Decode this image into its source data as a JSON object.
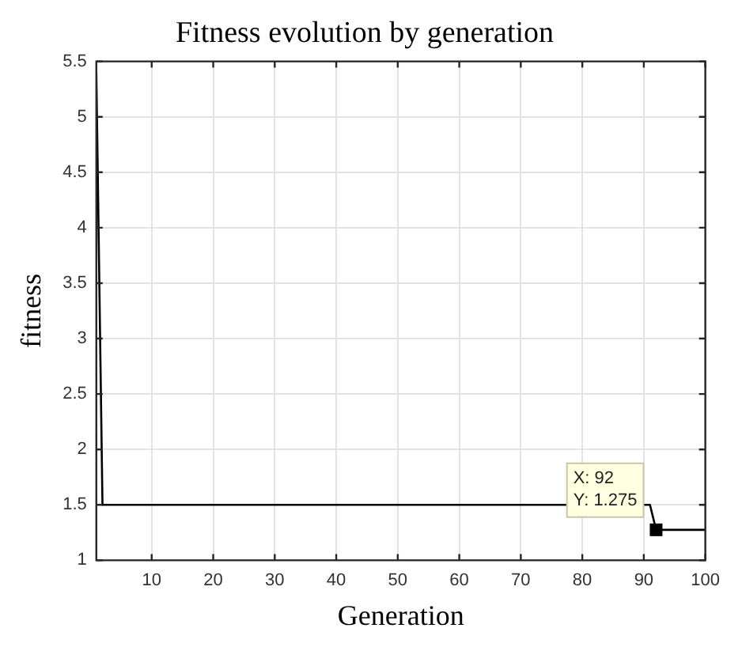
{
  "chart_data": {
    "type": "line",
    "title": "Fitness evolution by generation",
    "xlabel": "Generation",
    "ylabel": "fitness",
    "x": [
      1,
      2,
      91,
      92,
      100
    ],
    "series": [
      {
        "color": "#000000",
        "values": [
          5.4,
          1.5,
          1.5,
          1.275,
          1.275
        ]
      }
    ],
    "xlim": [
      1,
      100
    ],
    "xticks": [
      10,
      20,
      30,
      40,
      50,
      60,
      70,
      80,
      90,
      100
    ],
    "ylim": [
      1,
      5.5
    ],
    "yticks": [
      1,
      1.5,
      2,
      2.5,
      3,
      3.5,
      4,
      4.5,
      5,
      5.5
    ],
    "grid": true,
    "legend": false,
    "marker": "none",
    "line_style": "solid",
    "annotations": [
      {
        "text": "X: 92\nY: 1.275",
        "x": 92,
        "y": 1.275
      }
    ]
  }
}
